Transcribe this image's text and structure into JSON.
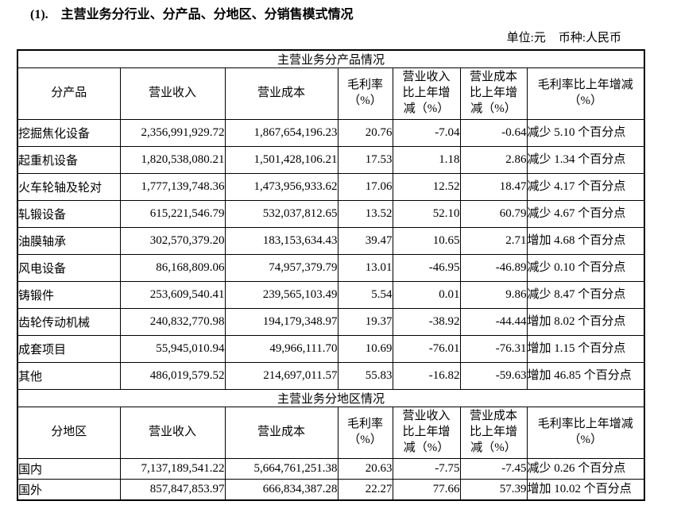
{
  "page": {
    "heading": "(1).　主营业务分行业、分产品、分地区、分销售模式情况",
    "unit_label": "单位:元",
    "currency_label": "币种:人民币"
  },
  "product_table": {
    "section_title": "主营业务分产品情况",
    "headers": [
      "分产品",
      "营业收入",
      "营业成本",
      "毛利率\n（%）",
      "营业收入\n比上年增\n减（%）",
      "营业成本\n比上年增\n减（%）",
      "毛利率比上年增减\n（%）"
    ],
    "rows": [
      [
        "挖掘焦化设备",
        "2,356,991,929.72",
        "1,867,654,196.23",
        "20.76",
        "-7.04",
        "-0.64",
        "减少 5.10 个百分点"
      ],
      [
        "起重机设备",
        "1,820,538,080.21",
        "1,501,428,106.21",
        "17.53",
        "1.18",
        "2.86",
        "减少 1.34 个百分点"
      ],
      [
        "火车轮轴及轮对",
        "1,777,139,748.36",
        "1,473,956,933.62",
        "17.06",
        "12.52",
        "18.47",
        "减少 4.17 个百分点"
      ],
      [
        "轧锻设备",
        "615,221,546.79",
        "532,037,812.65",
        "13.52",
        "52.10",
        "60.79",
        "减少 4.67 个百分点"
      ],
      [
        "油膜轴承",
        "302,570,379.20",
        "183,153,634.43",
        "39.47",
        "10.65",
        "2.71",
        "增加 4.68 个百分点"
      ],
      [
        "风电设备",
        "86,168,809.06",
        "74,957,379.79",
        "13.01",
        "-46.95",
        "-46.89",
        "减少 0.10 个百分点"
      ],
      [
        "铸锻件",
        "253,609,540.41",
        "239,565,103.49",
        "5.54",
        "0.01",
        "9.86",
        "减少 8.47 个百分点"
      ],
      [
        "齿轮传动机械",
        "240,832,770.98",
        "194,179,348.97",
        "19.37",
        "-38.92",
        "-44.44",
        "增加 8.02 个百分点"
      ],
      [
        "成套项目",
        "55,945,010.94",
        "49,966,111.70",
        "10.69",
        "-76.01",
        "-76.31",
        "增加 1.15 个百分点"
      ],
      [
        "其他",
        "486,019,579.52",
        "214,697,011.57",
        "55.83",
        "-16.82",
        "-59.63",
        "增加 46.85 个百分点"
      ]
    ]
  },
  "region_table": {
    "section_title": "主营业务分地区情况",
    "headers": [
      "分地区",
      "营业收入",
      "营业成本",
      "毛利率\n（%）",
      "营业收入\n比上年增\n减（%）",
      "营业成本\n比上年增\n减（%）",
      "毛利率比上年增减\n（%）"
    ],
    "rows": [
      [
        "国内",
        "7,137,189,541.22",
        "5,664,761,251.38",
        "20.63",
        "-7.75",
        "-7.45",
        "减少 0.26 个百分点"
      ],
      [
        "国外",
        "857,847,853.97",
        "666,834,387.28",
        "22.27",
        "77.66",
        "57.39",
        "增加 10.02 个百分点"
      ]
    ]
  }
}
